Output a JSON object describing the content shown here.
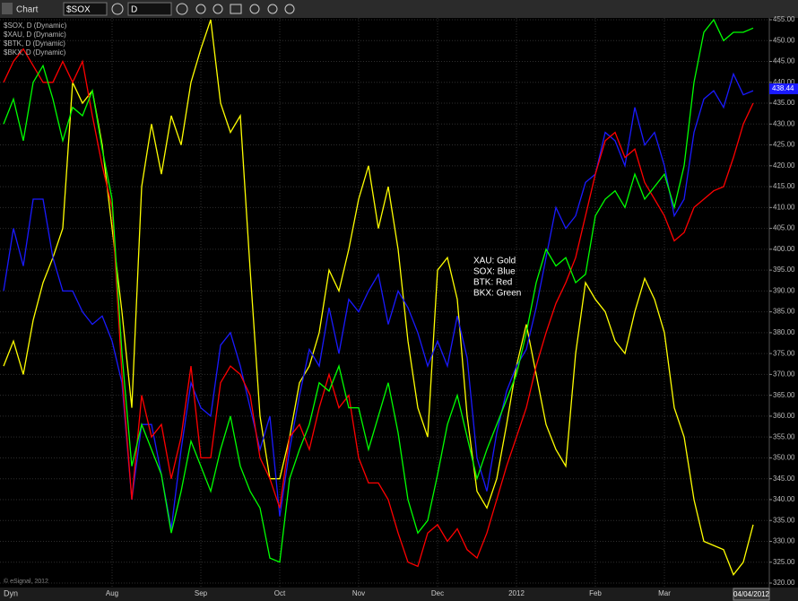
{
  "chart_data": {
    "type": "line",
    "toolbar": {
      "title": "Chart",
      "symbol": "$SOX",
      "interval": "D"
    },
    "study_labels": [
      "$SOX, D (Dynamic)",
      "$XAU, D (Dynamic)",
      "$BTK, D (Dynamic)",
      "$BKX, D (Dynamic)"
    ],
    "annotation": [
      "XAU:  Gold",
      "SOX:  Blue",
      "BTK:  Red",
      "BKX:  Green"
    ],
    "copyright": "© eSignal, 2012",
    "mode_label": "Dyn",
    "date_label": "04/04/2012",
    "last_value": 438.44,
    "last_value_color": "#1a1aff",
    "grid": true,
    "categories": [
      null,
      null,
      null,
      null,
      null,
      null,
      null,
      null,
      null,
      null,
      null,
      "Aug",
      null,
      null,
      null,
      null,
      null,
      null,
      null,
      null,
      "Sep",
      null,
      null,
      null,
      null,
      null,
      null,
      null,
      "Oct",
      null,
      null,
      null,
      null,
      null,
      null,
      null,
      "Nov",
      null,
      null,
      null,
      null,
      null,
      null,
      null,
      "Dec",
      null,
      null,
      null,
      null,
      null,
      null,
      null,
      "2012",
      null,
      null,
      null,
      null,
      null,
      null,
      null,
      "Feb",
      null,
      null,
      null,
      null,
      null,
      null,
      "Mar",
      null,
      null,
      null,
      null,
      null,
      null,
      null,
      null,
      null
    ],
    "series": [
      {
        "name": "XAU",
        "color": "#ffff00",
        "values": [
          372,
          378,
          370,
          383,
          392,
          398,
          405,
          440,
          435,
          438,
          425,
          405,
          385,
          362,
          415,
          430,
          418,
          432,
          425,
          440,
          448,
          455,
          435,
          428,
          432,
          395,
          360,
          345,
          345,
          355,
          368,
          372,
          380,
          395,
          390,
          400,
          412,
          420,
          405,
          415,
          400,
          378,
          362,
          355,
          395,
          398,
          388,
          360,
          342,
          338,
          345,
          358,
          372,
          382,
          370,
          358,
          352,
          348,
          375,
          392,
          388,
          385,
          378,
          375,
          385,
          393,
          388,
          380,
          362,
          355,
          340,
          330,
          329,
          328,
          322,
          325,
          334
        ]
      },
      {
        "name": "SOX",
        "color": "#1a1aff",
        "values": [
          390,
          405,
          396,
          412,
          412,
          398,
          390,
          390,
          385,
          382,
          384,
          378,
          368,
          340,
          358,
          358,
          346,
          333,
          352,
          368,
          362,
          360,
          377,
          380,
          372,
          362,
          352,
          360,
          336,
          352,
          365,
          376,
          372,
          386,
          375,
          388,
          385,
          390,
          394,
          382,
          390,
          386,
          380,
          372,
          378,
          372,
          384,
          374,
          350,
          342,
          356,
          366,
          372,
          376,
          386,
          398,
          410,
          405,
          408,
          416,
          418,
          428,
          426,
          420,
          434,
          425,
          428,
          420,
          408,
          412,
          428,
          436,
          438,
          434,
          442,
          437,
          438
        ]
      },
      {
        "name": "BTK",
        "color": "#ff0000",
        "values": [
          440,
          445,
          448,
          444,
          440,
          440,
          445,
          440,
          445,
          432,
          420,
          410,
          370,
          340,
          365,
          355,
          358,
          345,
          355,
          372,
          350,
          350,
          368,
          372,
          370,
          365,
          350,
          345,
          338,
          355,
          358,
          352,
          362,
          370,
          362,
          365,
          350,
          344,
          344,
          340,
          332,
          325,
          324,
          332,
          334,
          330,
          333,
          328,
          326,
          332,
          340,
          348,
          355,
          362,
          372,
          380,
          387,
          392,
          398,
          408,
          418,
          426,
          428,
          422,
          424,
          416,
          412,
          408,
          402,
          404,
          410,
          412,
          414,
          415,
          422,
          430,
          435
        ]
      },
      {
        "name": "BKX",
        "color": "#00ff00",
        "values": [
          430,
          436,
          426,
          440,
          444,
          436,
          426,
          434,
          432,
          438,
          424,
          412,
          375,
          348,
          358,
          352,
          346,
          332,
          342,
          354,
          348,
          342,
          352,
          360,
          348,
          342,
          338,
          326,
          325,
          345,
          352,
          358,
          368,
          366,
          372,
          362,
          362,
          352,
          360,
          368,
          356,
          340,
          332,
          335,
          346,
          358,
          365,
          355,
          345,
          352,
          358,
          364,
          370,
          380,
          392,
          400,
          396,
          398,
          392,
          394,
          408,
          412,
          414,
          410,
          418,
          412,
          415,
          418,
          410,
          420,
          440,
          452,
          455,
          450,
          452,
          452,
          453
        ]
      }
    ],
    "ylim": [
      320,
      455
    ],
    "yticks": [
      {
        "value": 320,
        "label": "320.00"
      },
      {
        "value": 325,
        "label": "325.00"
      },
      {
        "value": 330,
        "label": "330.00"
      },
      {
        "value": 335,
        "label": "335.00"
      },
      {
        "value": 340,
        "label": "340.00"
      },
      {
        "value": 345,
        "label": "345.00"
      },
      {
        "value": 350,
        "label": "350.00"
      },
      {
        "value": 355,
        "label": "355.00"
      },
      {
        "value": 360,
        "label": "360.00"
      },
      {
        "value": 365,
        "label": "365.00"
      },
      {
        "value": 370,
        "label": "370.00"
      },
      {
        "value": 375,
        "label": "375.00"
      },
      {
        "value": 380,
        "label": "380.00"
      },
      {
        "value": 385,
        "label": "385.00"
      },
      {
        "value": 390,
        "label": "390.00"
      },
      {
        "value": 395,
        "label": "395.00"
      },
      {
        "value": 400,
        "label": "400.00"
      },
      {
        "value": 405,
        "label": "405.00"
      },
      {
        "value": 410,
        "label": "410.00"
      },
      {
        "value": 415,
        "label": "415.00"
      },
      {
        "value": 420,
        "label": "420.00"
      },
      {
        "value": 425,
        "label": "425.00"
      },
      {
        "value": 430,
        "label": "430.00"
      },
      {
        "value": 435,
        "label": "435.00"
      },
      {
        "value": 440,
        "label": "440.00"
      },
      {
        "value": 445,
        "label": "445.00"
      },
      {
        "value": 450,
        "label": "450.00"
      },
      {
        "value": 455,
        "label": "455.00"
      }
    ]
  }
}
